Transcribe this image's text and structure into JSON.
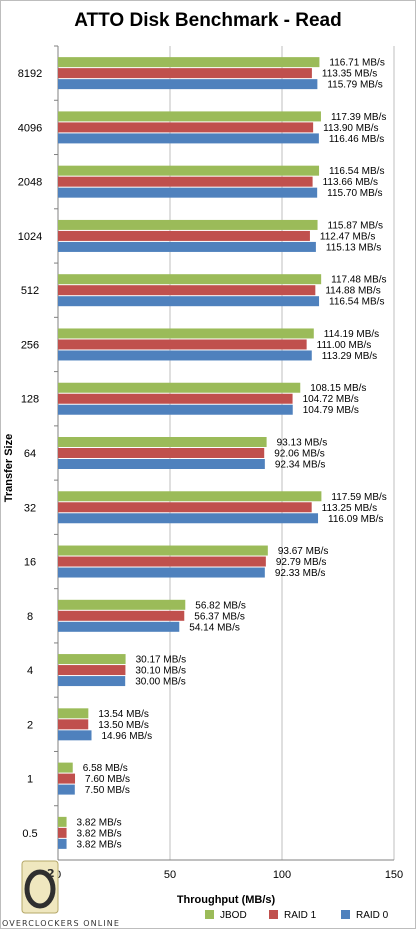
{
  "chart_data": {
    "type": "bar",
    "orientation": "horizontal",
    "title": "ATTO Disk Benchmark - Read",
    "xlabel": "Throughput (MB/s)",
    "ylabel": "Transfer Size",
    "xlim": [
      0,
      150
    ],
    "xticks": [
      "0",
      "50",
      "100",
      "150"
    ],
    "grid": true,
    "legend_position": "bottom",
    "categories": [
      "8192",
      "4096",
      "2048",
      "1024",
      "512",
      "256",
      "128",
      "64",
      "32",
      "16",
      "8",
      "4",
      "2",
      "1",
      "0.5"
    ],
    "series": [
      {
        "name": "JBOD",
        "color": "#9bbb59",
        "values": [
          116.71,
          117.39,
          116.54,
          115.87,
          117.48,
          114.19,
          108.15,
          93.13,
          117.59,
          93.67,
          56.82,
          30.17,
          13.54,
          6.58,
          3.82
        ],
        "labels": [
          "116.71 MB/s",
          "117.39 MB/s",
          "116.54 MB/s",
          "115.87 MB/s",
          "117.48 MB/s",
          "114.19 MB/s",
          "108.15 MB/s",
          "93.13 MB/s",
          "117.59 MB/s",
          "93.67 MB/s",
          "56.82 MB/s",
          "30.17 MB/s",
          "13.54 MB/s",
          "6.58 MB/s",
          "3.82 MB/s"
        ]
      },
      {
        "name": "RAID 1",
        "color": "#c0504d",
        "values": [
          113.35,
          113.9,
          113.66,
          112.47,
          114.88,
          111.0,
          104.72,
          92.06,
          113.25,
          92.79,
          56.37,
          30.1,
          13.5,
          7.6,
          3.82
        ],
        "labels": [
          "113.35 MB/s",
          "113.90 MB/s",
          "113.66 MB/s",
          "112.47 MB/s",
          "114.88 MB/s",
          "111.00 MB/s",
          "104.72 MB/s",
          "92.06 MB/s",
          "113.25 MB/s",
          "92.79 MB/s",
          "56.37 MB/s",
          "30.10 MB/s",
          "13.50 MB/s",
          "7.60 MB/s",
          "3.82 MB/s"
        ]
      },
      {
        "name": "RAID 0",
        "color": "#4f81bd",
        "values": [
          115.79,
          116.46,
          115.7,
          115.13,
          116.54,
          113.29,
          104.79,
          92.34,
          116.09,
          92.33,
          54.14,
          30.0,
          14.96,
          7.5,
          3.82
        ],
        "labels": [
          "115.79 MB/s",
          "116.46 MB/s",
          "115.70 MB/s",
          "115.13 MB/s",
          "116.54 MB/s",
          "113.29 MB/s",
          "104.79 MB/s",
          "92.34 MB/s",
          "116.09 MB/s",
          "92.33 MB/s",
          "54.14 MB/s",
          "30.00 MB/s",
          "14.96 MB/s",
          "7.50 MB/s",
          "3.82 MB/s"
        ]
      }
    ]
  },
  "watermark": {
    "text": "OVERCLOCKERS ONLINE",
    "icon": "oc-logo-icon"
  }
}
